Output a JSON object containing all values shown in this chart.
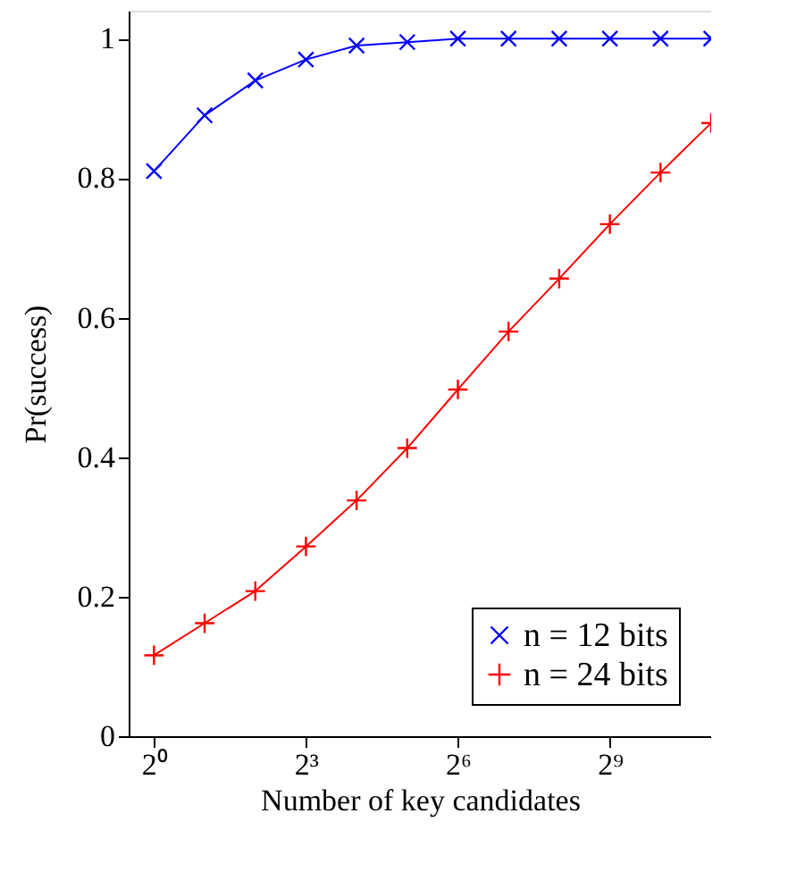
{
  "chart_data": {
    "type": "line",
    "xlabel": "Number of key candidates",
    "ylabel": "Pr(success)",
    "x": [
      1,
      2,
      4,
      8,
      16,
      32,
      64,
      128,
      256,
      512,
      1024,
      2048
    ],
    "series": [
      {
        "name": "n = 12 bits",
        "color": "#0000ff",
        "marker": "cross",
        "values": [
          0.81,
          0.89,
          0.94,
          0.97,
          0.99,
          0.995,
          1,
          1,
          1,
          1,
          1,
          1
        ]
      },
      {
        "name": "n = 24 bits",
        "color": "#ff0000",
        "marker": "plus",
        "values": [
          0.116,
          0.162,
          0.208,
          0.272,
          0.338,
          0.413,
          0.497,
          0.58,
          0.656,
          0.734,
          0.808,
          0.879
        ]
      }
    ],
    "log": "x",
    "xlim": [
      0.7071,
      2048
    ],
    "ylim": [
      0,
      1.04
    ],
    "xticks": [
      {
        "value": 1,
        "label": "2⁰"
      },
      {
        "value": 8,
        "label": "2³"
      },
      {
        "value": 64,
        "label": "2⁶"
      },
      {
        "value": 512,
        "label": "2⁹"
      }
    ],
    "yticks": [
      0,
      0.2,
      0.4,
      0.6,
      0.8,
      1
    ],
    "grid": false,
    "legend": "bottom right",
    "line_style": "solid"
  }
}
